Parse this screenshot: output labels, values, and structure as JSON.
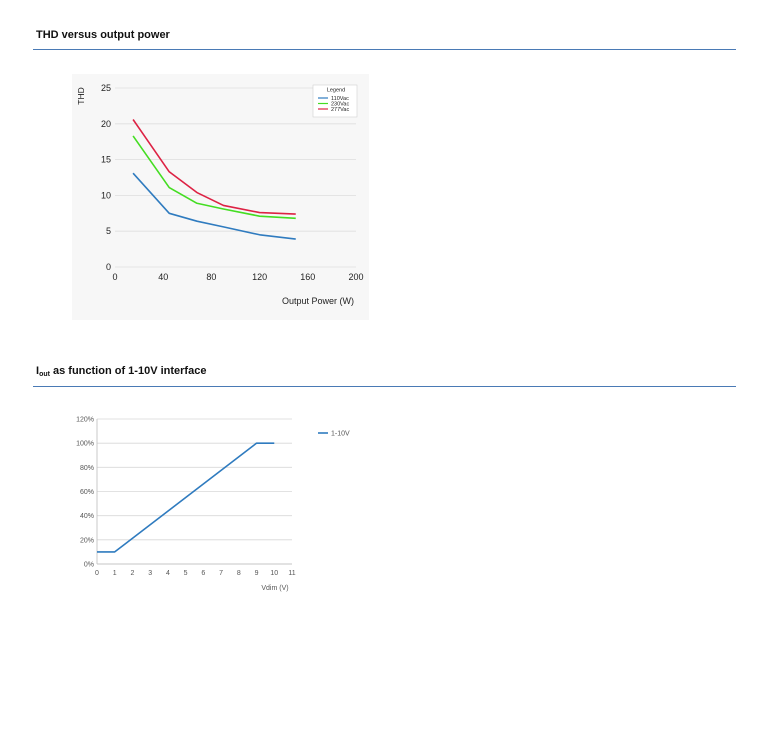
{
  "sections": [
    {
      "title": "THD versus output power"
    },
    {
      "title_main": "I",
      "title_sub": "out",
      "title_rest": " as function of 1-10V interface"
    }
  ],
  "chart_data": [
    {
      "type": "line",
      "ylabel": "THD",
      "xlabel": "Output Power (W)",
      "xlim": [
        0,
        200
      ],
      "ylim": [
        0,
        25
      ],
      "x_ticks": [
        "0",
        "40",
        "80",
        "120",
        "160",
        "200"
      ],
      "y_ticks": [
        "0",
        "5",
        "10",
        "15",
        "20",
        "25"
      ],
      "grid": "horizontal",
      "legend_title": "Legend",
      "legend_position": "top-right",
      "series": [
        {
          "name": "110Vac",
          "color": "#2f7bbf",
          "x": [
            15,
            45,
            68,
            90,
            120,
            150
          ],
          "y": [
            13.1,
            7.5,
            6.4,
            5.6,
            4.5,
            3.9
          ]
        },
        {
          "name": "230Vac",
          "color": "#44dd22",
          "x": [
            15,
            45,
            68,
            90,
            120,
            150
          ],
          "y": [
            18.3,
            11.1,
            8.9,
            8.1,
            7.1,
            6.8
          ]
        },
        {
          "name": "277Vac",
          "color": "#dd2244",
          "x": [
            15,
            45,
            68,
            90,
            120,
            150
          ],
          "y": [
            20.6,
            13.3,
            10.4,
            8.6,
            7.6,
            7.4
          ]
        }
      ]
    },
    {
      "type": "line",
      "xlabel": "Vdim (V)",
      "ylabel": "",
      "xlim": [
        0,
        11
      ],
      "ylim": [
        0,
        120
      ],
      "x_ticks": [
        "0",
        "1",
        "2",
        "3",
        "4",
        "5",
        "6",
        "7",
        "8",
        "9",
        "10",
        "11"
      ],
      "y_ticks": [
        "0%",
        "20%",
        "40%",
        "60%",
        "80%",
        "100%",
        "120%"
      ],
      "grid": "horizontal",
      "legend_position": "right",
      "series": [
        {
          "name": "1-10V",
          "color": "#2f7bbf",
          "x": [
            0,
            1,
            9,
            10
          ],
          "y": [
            10,
            10,
            100,
            100
          ]
        }
      ]
    }
  ]
}
